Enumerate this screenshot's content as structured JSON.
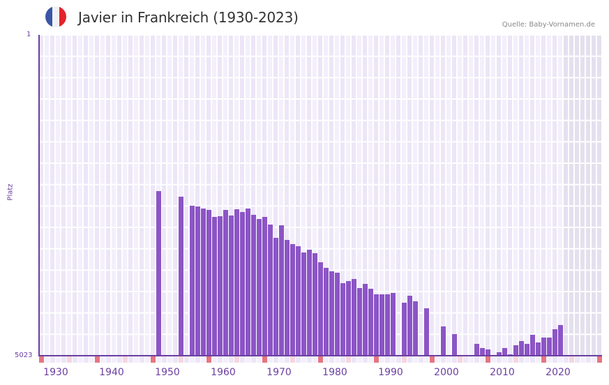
{
  "header": {
    "title": "Javier in Frankreich (1930-2023)",
    "source": "Quelle: Baby-Vornamen.de",
    "flag_icon": "france-flag-icon",
    "flag_colors": [
      "#3a56a6",
      "#f2f2f4",
      "#e3242b"
    ]
  },
  "axis": {
    "y_top_label": "1",
    "y_bottom_label": "5023",
    "y_title": "Platz",
    "x_labels": [
      "1930",
      "1940",
      "1950",
      "1960",
      "1970",
      "1980",
      "1990",
      "2000",
      "2010",
      "2020"
    ]
  },
  "colors": {
    "bar": "#8c55c6",
    "axis": "#6b3fa0",
    "grid_light": "#f3effb",
    "grid_dark": "#ece6f7",
    "future_shade": "#e4e0ee",
    "decade_marker": "#e57681",
    "mid_marker": "#f5d6df"
  },
  "chart_data": {
    "type": "bar",
    "title": "Javier in Frankreich (1930-2023)",
    "xlabel": "",
    "ylabel": "Platz",
    "ylim": [
      5023,
      1
    ],
    "y_inverted": true,
    "x_range": [
      1929,
      2029
    ],
    "shaded_from_year": 2023,
    "grid": true,
    "legend": null,
    "x": [
      1950,
      1954,
      1956,
      1957,
      1958,
      1959,
      1960,
      1961,
      1962,
      1963,
      1964,
      1965,
      1966,
      1967,
      1968,
      1969,
      1970,
      1971,
      1972,
      1973,
      1974,
      1975,
      1976,
      1977,
      1978,
      1979,
      1980,
      1981,
      1982,
      1983,
      1984,
      1985,
      1986,
      1987,
      1988,
      1989,
      1990,
      1991,
      1992,
      1994,
      1995,
      1996,
      1998,
      2001,
      2003,
      2007,
      2008,
      2009,
      2011,
      2012,
      2013,
      2014,
      2015,
      2016,
      2017,
      2018,
      2019,
      2020,
      2021,
      2022
    ],
    "values": [
      2446,
      2534,
      2676,
      2687,
      2719,
      2741,
      2850,
      2839,
      2741,
      2828,
      2730,
      2774,
      2719,
      2818,
      2883,
      2850,
      2970,
      3178,
      2981,
      3210,
      3276,
      3309,
      3407,
      3363,
      3418,
      3560,
      3647,
      3702,
      3724,
      3887,
      3855,
      3822,
      3964,
      3898,
      3975,
      4062,
      4062,
      4062,
      4040,
      4193,
      4084,
      4171,
      4280,
      4564,
      4684,
      4837,
      4903,
      4925,
      4968,
      4903,
      5001,
      4859,
      4794,
      4837,
      4695,
      4815,
      4739,
      4739,
      4608,
      4543
    ]
  }
}
